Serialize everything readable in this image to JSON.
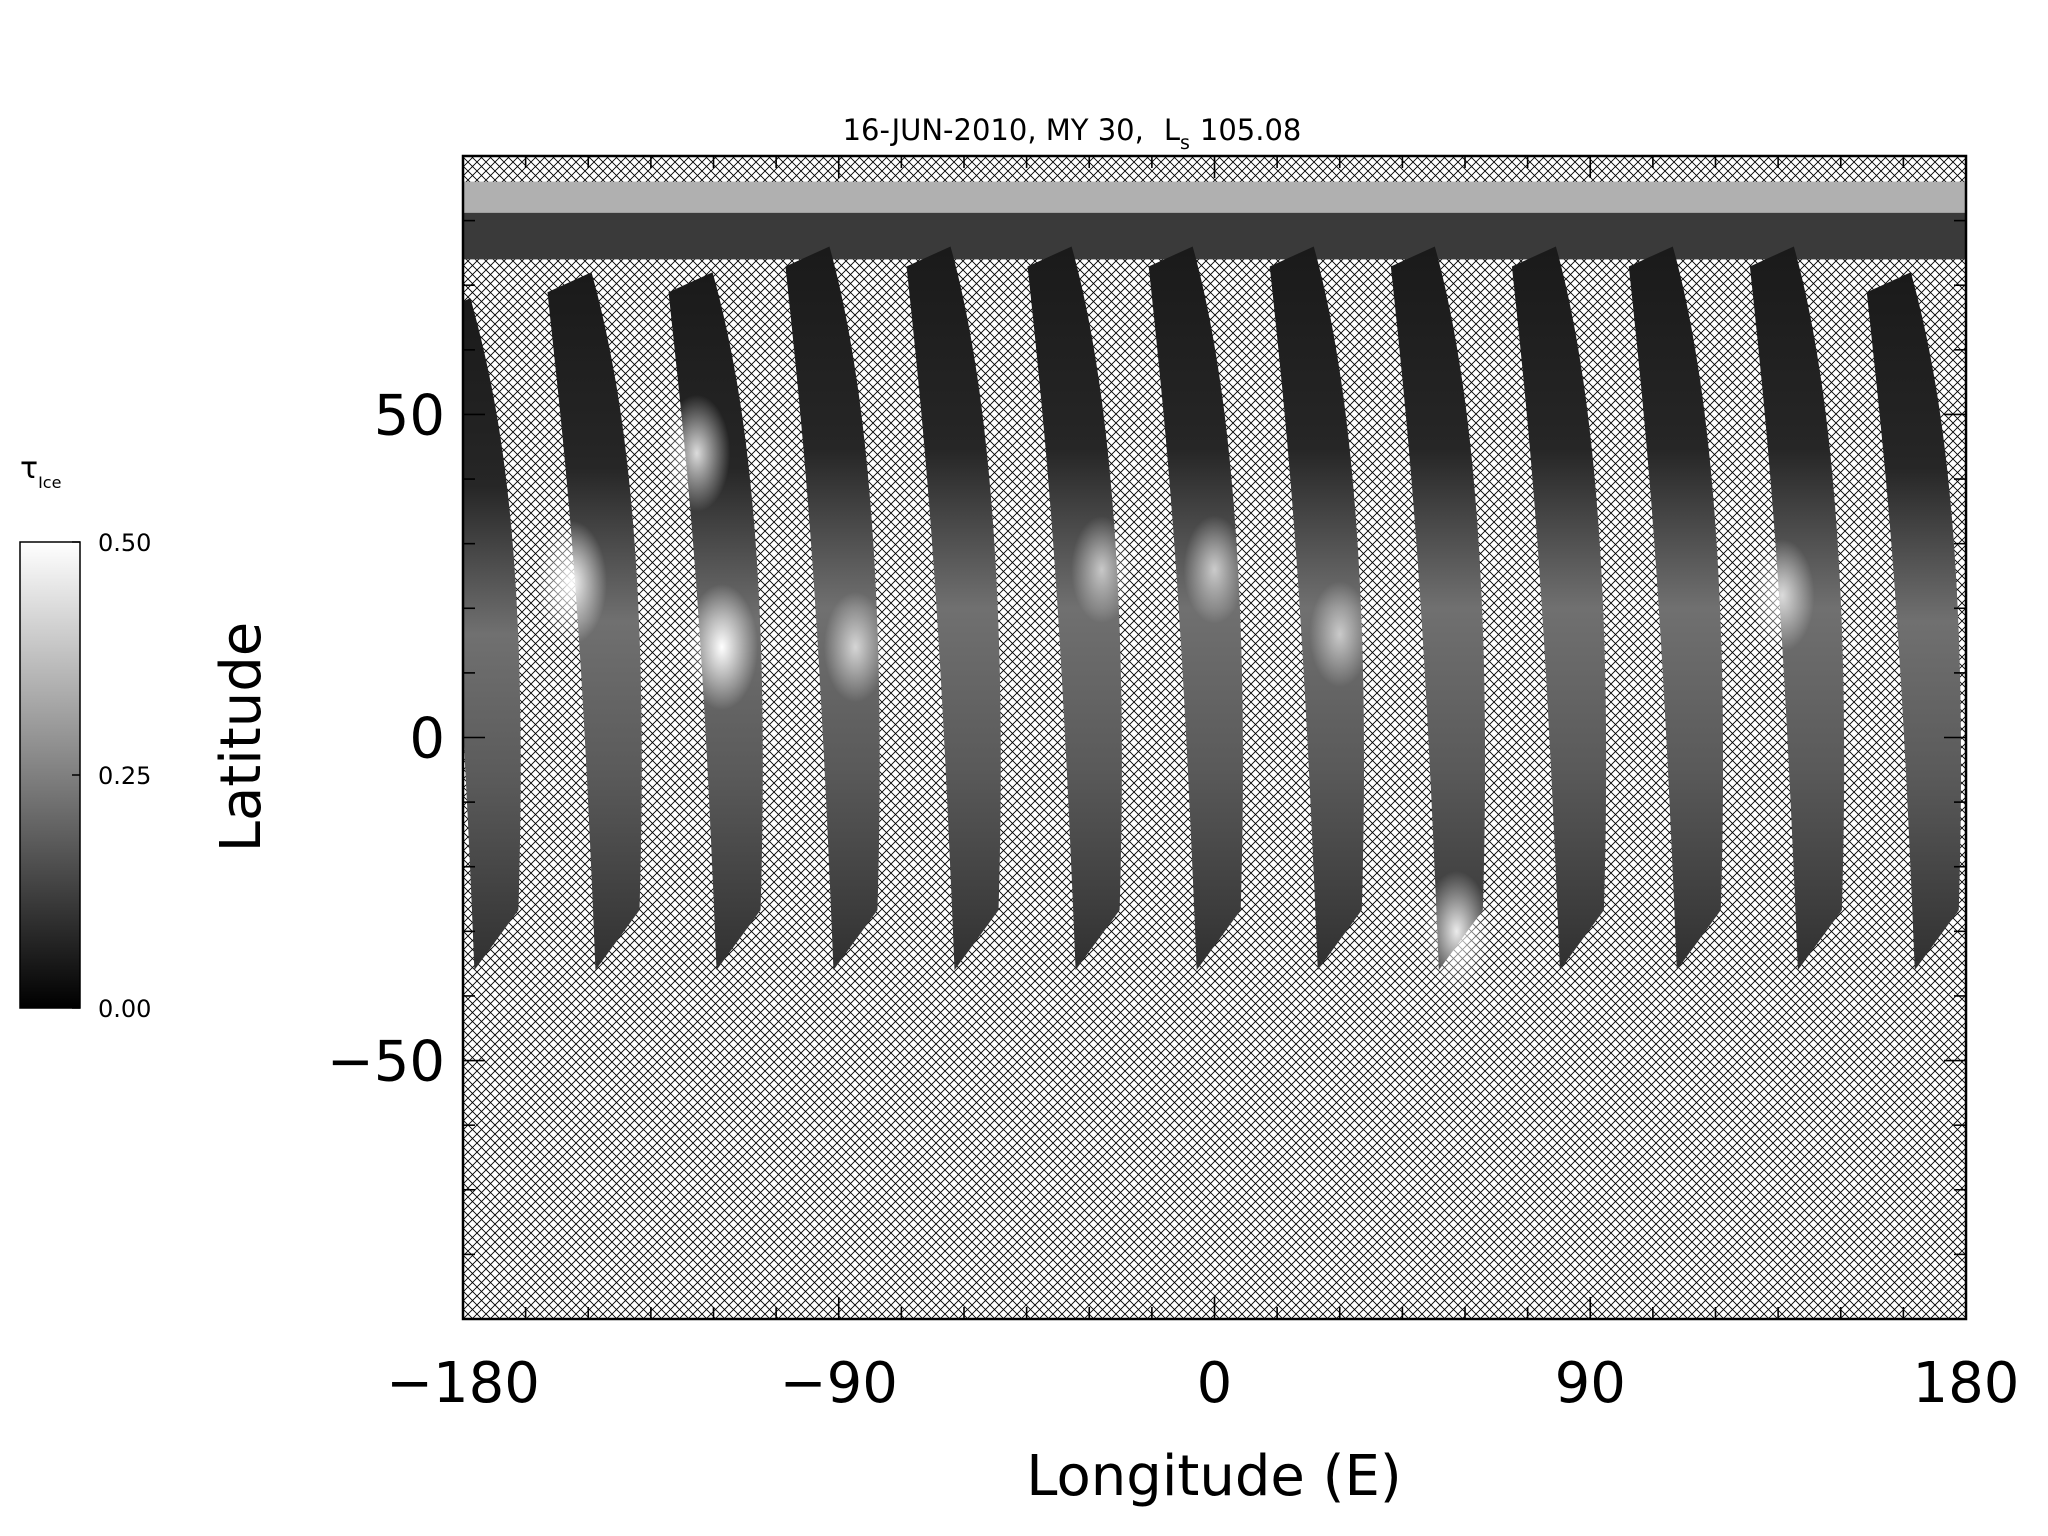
{
  "chart_data": {
    "type": "heatmap",
    "title": {
      "date": "16-JUN-2010, MY 30,",
      "ls_main": "L",
      "ls_sub": "s",
      "ls_value": "105.08"
    },
    "xlabel": "Longitude (E)",
    "ylabel": "Latitude",
    "xlim": [
      -180,
      180
    ],
    "ylim": [
      -90,
      90
    ],
    "x_ticks": [
      -180,
      -90,
      0,
      90,
      180
    ],
    "x_tick_labels": [
      "−180",
      "−90",
      "0",
      "90",
      "180"
    ],
    "y_ticks": [
      50,
      0,
      -50
    ],
    "y_tick_labels": [
      "50",
      "0",
      "−50"
    ],
    "no_data_pattern": "crosshatch",
    "colorbar": {
      "label_main": "τ",
      "label_sub": "Ice",
      "min": 0.0,
      "max": 0.5,
      "ticks": [
        0.0,
        0.25,
        0.5
      ],
      "tick_labels": [
        "0.00",
        "0.25",
        "0.50"
      ],
      "colormap": "grayscale"
    },
    "swaths": [
      {
        "lon": -172,
        "south_lat": -36,
        "north_lat": 68
      },
      {
        "lon": -143,
        "south_lat": -36,
        "north_lat": 72
      },
      {
        "lon": -114,
        "south_lat": -36,
        "north_lat": 72
      },
      {
        "lon": -86,
        "south_lat": -36,
        "north_lat": 76
      },
      {
        "lon": -57,
        "south_lat": -36,
        "north_lat": 76
      },
      {
        "lon": -28,
        "south_lat": -36,
        "north_lat": 76
      },
      {
        "lon": 1,
        "south_lat": -36,
        "north_lat": 76
      },
      {
        "lon": 30,
        "south_lat": -36,
        "north_lat": 76
      },
      {
        "lon": 59,
        "south_lat": -36,
        "north_lat": 76
      },
      {
        "lon": 88,
        "south_lat": -36,
        "north_lat": 76
      },
      {
        "lon": 116,
        "south_lat": -36,
        "north_lat": 76
      },
      {
        "lon": 145,
        "south_lat": -36,
        "north_lat": 76
      },
      {
        "lon": 173,
        "south_lat": -36,
        "north_lat": 72
      }
    ],
    "bright_clouds": [
      {
        "lon": -154,
        "lat": 24,
        "tau": 0.48
      },
      {
        "lon": -124,
        "lat": 44,
        "tau": 0.42
      },
      {
        "lon": -118,
        "lat": 14,
        "tau": 0.5
      },
      {
        "lon": -86,
        "lat": 14,
        "tau": 0.36
      },
      {
        "lon": -27,
        "lat": 26,
        "tau": 0.33
      },
      {
        "lon": 0,
        "lat": 26,
        "tau": 0.34
      },
      {
        "lon": 30,
        "lat": 16,
        "tau": 0.32
      },
      {
        "lon": 136,
        "lat": 22,
        "tau": 0.38
      },
      {
        "lon": 58,
        "lat": -30,
        "tau": 0.45
      }
    ]
  }
}
